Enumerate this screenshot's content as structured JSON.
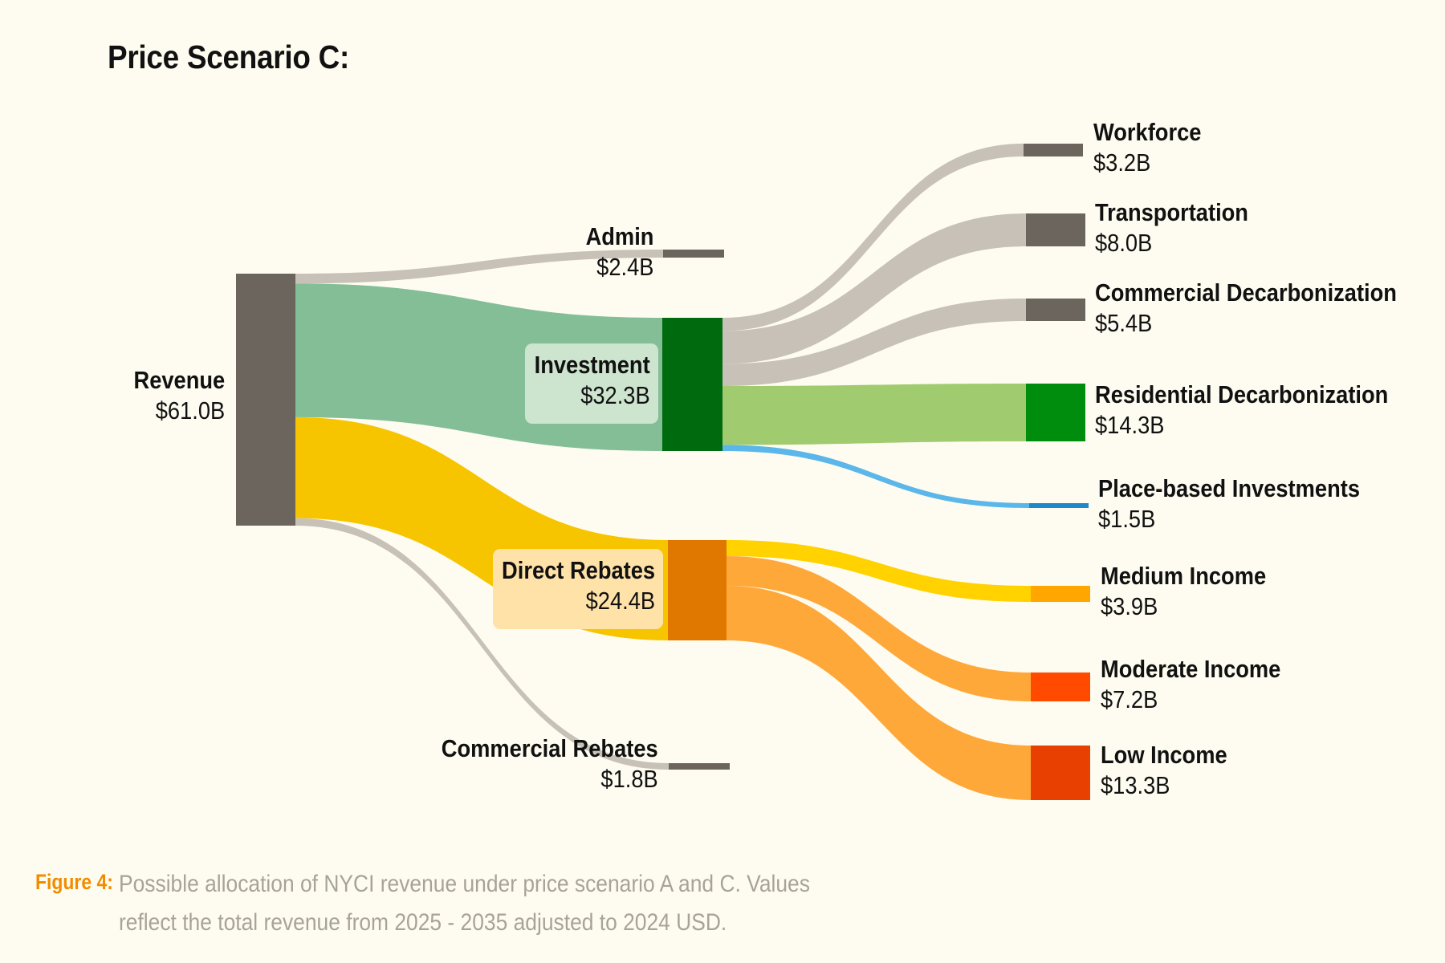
{
  "title": "Price Scenario C:",
  "chart_data": {
    "type": "sankey",
    "title": "Price Scenario C:",
    "units": "USD billions",
    "nodes": [
      {
        "id": "revenue",
        "name": "Revenue",
        "value_label": "$61.0B",
        "value": 61.0,
        "color": "#6C655D"
      },
      {
        "id": "admin",
        "name": "Admin",
        "value_label": "$2.4B",
        "value": 2.4,
        "color": "#6C655D"
      },
      {
        "id": "investment",
        "name": "Investment",
        "value_label": "$32.3B",
        "value": 32.3,
        "color": "#006A0E"
      },
      {
        "id": "direct_rebates",
        "name": "Direct Rebates",
        "value_label": "$24.4B",
        "value": 24.4,
        "color": "#E07800"
      },
      {
        "id": "commercial_rebates",
        "name": "Commercial Rebates",
        "value_label": "$1.8B",
        "value": 1.8,
        "color": "#6C655D"
      },
      {
        "id": "workforce",
        "name": "Workforce",
        "value_label": "$3.2B",
        "value": 3.2,
        "color": "#6C655D"
      },
      {
        "id": "transportation",
        "name": "Transportation",
        "value_label": "$8.0B",
        "value": 8.0,
        "color": "#6C655D"
      },
      {
        "id": "commercial_decarbonization",
        "name": "Commercial Decarbonization",
        "value_label": "$5.4B",
        "value": 5.4,
        "color": "#6C655D"
      },
      {
        "id": "residential_decarbonization",
        "name": "Residential Decarbonization",
        "value_label": "$14.3B",
        "value": 14.3,
        "color": "#008C0C"
      },
      {
        "id": "place_based_investments",
        "name": "Place-based Investments",
        "value_label": "$1.5B",
        "value": 1.5,
        "color": "#1E88C8"
      },
      {
        "id": "medium_income",
        "name": "Medium Income",
        "value_label": "$3.9B",
        "value": 3.9,
        "color": "#FFA600"
      },
      {
        "id": "moderate_income",
        "name": "Moderate Income",
        "value_label": "$7.2B",
        "value": 7.2,
        "color": "#FF4A00"
      },
      {
        "id": "low_income",
        "name": "Low Income",
        "value_label": "$13.3B",
        "value": 13.3,
        "color": "#E84000"
      }
    ],
    "links": [
      {
        "source": "revenue",
        "target": "admin",
        "value": 2.4,
        "color": "#C7C1B7"
      },
      {
        "source": "revenue",
        "target": "investment",
        "value": 32.3,
        "color": "#83BE97"
      },
      {
        "source": "revenue",
        "target": "direct_rebates",
        "value": 24.4,
        "color": "#F7C400"
      },
      {
        "source": "revenue",
        "target": "commercial_rebates",
        "value": 1.8,
        "color": "#C7C1B7"
      },
      {
        "source": "investment",
        "target": "workforce",
        "value": 3.2,
        "color": "#C7C1B7"
      },
      {
        "source": "investment",
        "target": "transportation",
        "value": 8.0,
        "color": "#C7C1B7"
      },
      {
        "source": "investment",
        "target": "commercial_decarbonization",
        "value": 5.4,
        "color": "#C7C1B7"
      },
      {
        "source": "investment",
        "target": "residential_decarbonization",
        "value": 14.3,
        "color": "#A0CB6E"
      },
      {
        "source": "investment",
        "target": "place_based_investments",
        "value": 1.5,
        "color": "#5BB7EA"
      },
      {
        "source": "direct_rebates",
        "target": "medium_income",
        "value": 3.9,
        "color": "#FFD200"
      },
      {
        "source": "direct_rebates",
        "target": "moderate_income",
        "value": 7.2,
        "color": "#FFA83A"
      },
      {
        "source": "direct_rebates",
        "target": "low_income",
        "value": 13.3,
        "color": "#FFA83A"
      }
    ]
  },
  "caption": {
    "figure_label": "Figure 4:",
    "line1": "Possible allocation of NYCI revenue under price scenario A and C. Values",
    "line2": "reflect the total revenue from 2025 - 2035 adjusted to 2024 USD."
  },
  "colors": {
    "background": "#FEFCF0",
    "figure_label": "#F08C00",
    "caption_text": "#A8A39A",
    "investment_label_bg": "#CDE4CE",
    "direct_rebates_label_bg": "#FFE2A8"
  }
}
